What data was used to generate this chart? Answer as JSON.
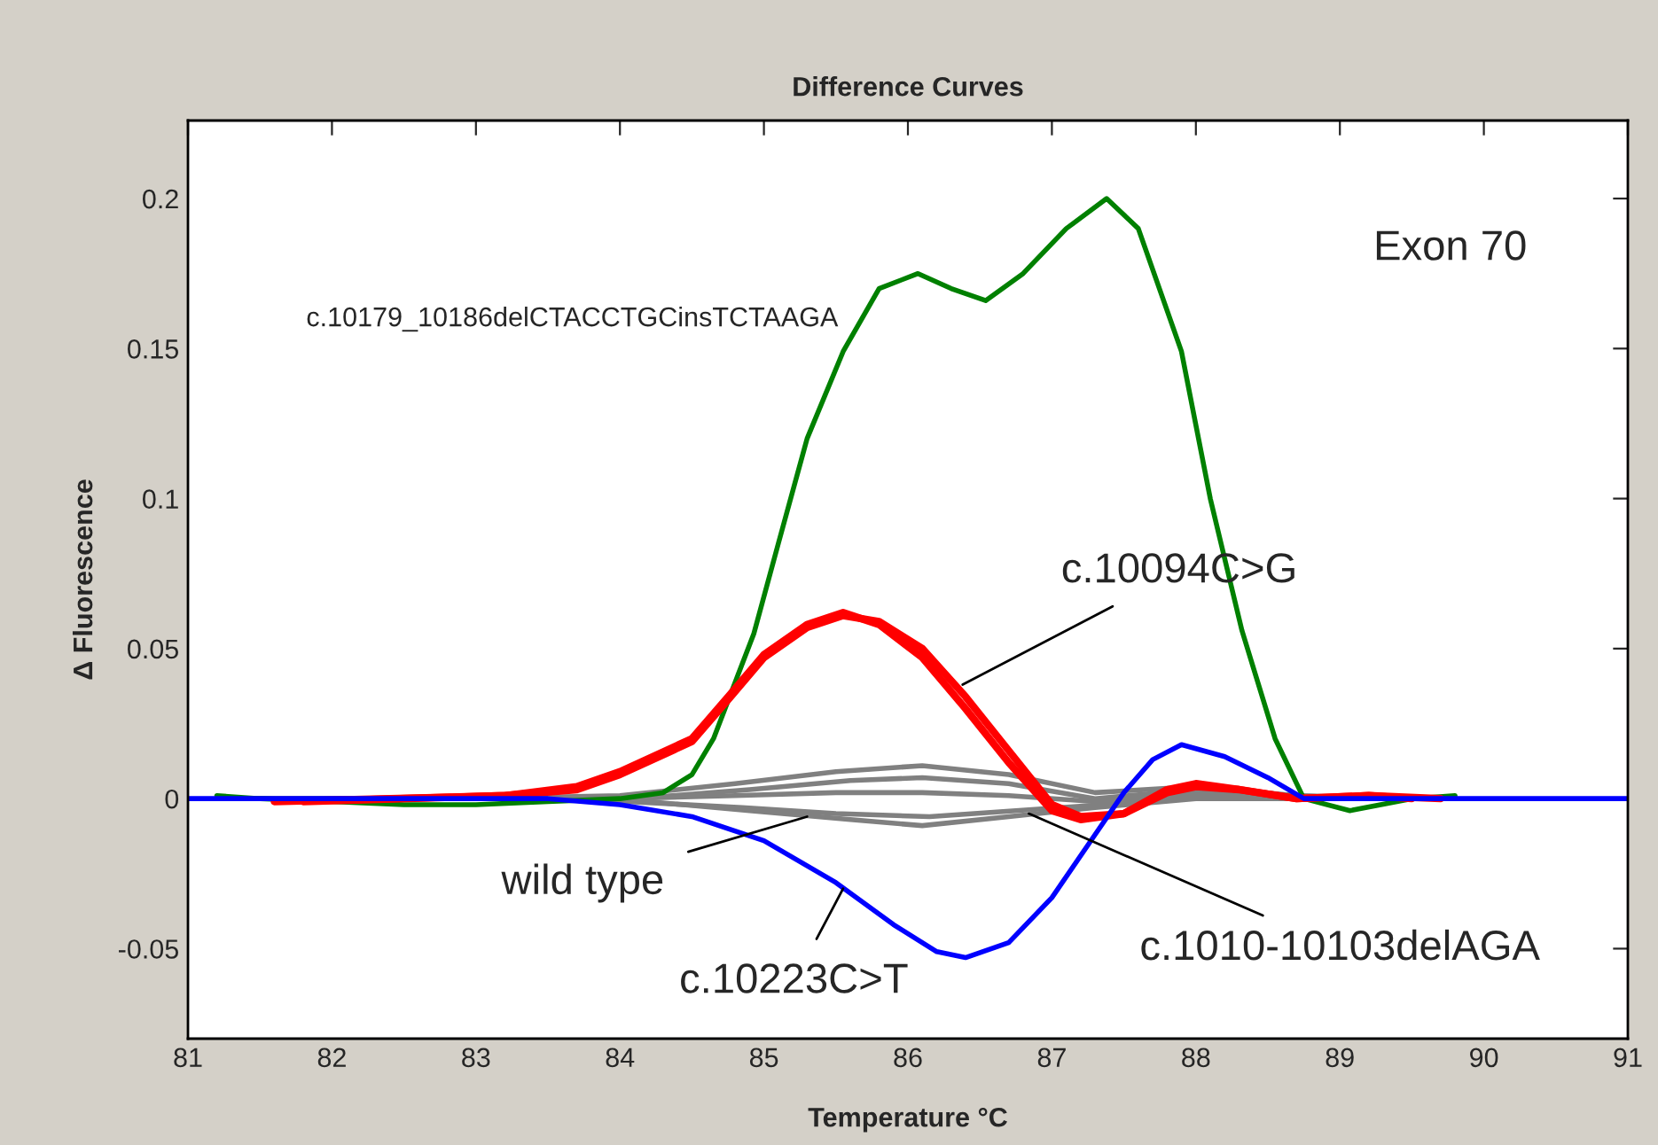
{
  "chart_data": {
    "type": "line",
    "title": "Difference Curves",
    "xlabel": "Temperature °C",
    "ylabel": "Δ Fluorescence",
    "xlim": [
      81,
      91
    ],
    "ylim": [
      -0.08,
      0.226
    ],
    "xticks": [
      81,
      82,
      83,
      84,
      85,
      86,
      87,
      88,
      89,
      90,
      91
    ],
    "yticks": [
      {
        "value": -0.05,
        "label": "-0.05"
      },
      0,
      0.05,
      0.1,
      0.15,
      0.2
    ],
    "grid": false,
    "legend": false,
    "marker": "none",
    "line_style": "solid",
    "series": [
      {
        "color": "#808080",
        "x": [
          81.5,
          83.0,
          84.0,
          84.8,
          85.5,
          86.1,
          86.7,
          87.3,
          88.0,
          88.7,
          89.5
        ],
        "values": [
          0,
          0,
          0.001,
          0.005,
          0.009,
          0.011,
          0.008,
          0.002,
          0.004,
          0.001,
          0
        ]
      },
      {
        "color": "#808080",
        "x": [
          81.8,
          83.1,
          84.1,
          84.9,
          85.6,
          86.1,
          86.7,
          87.3,
          88.0,
          88.7,
          89.3
        ],
        "values": [
          0,
          0,
          0.0,
          0.003,
          0.006,
          0.007,
          0.005,
          0.0,
          0.003,
          0.001,
          0
        ]
      },
      {
        "color": "#808080",
        "x": [
          81.3,
          83.0,
          84.0,
          84.8,
          85.5,
          86.1,
          86.7,
          87.3,
          88.0,
          88.7,
          89.7
        ],
        "values": [
          0,
          0,
          0.0,
          0.001,
          0.002,
          0.002,
          0.001,
          -0.001,
          0.002,
          0.0,
          0
        ]
      },
      {
        "color": "#808080",
        "x": [
          82.0,
          83.2,
          84.05,
          84.85,
          85.5,
          86.15,
          86.75,
          87.35,
          88.05,
          88.65,
          89.2
        ],
        "values": [
          0,
          0,
          -0.001,
          -0.003,
          -0.005,
          -0.006,
          -0.004,
          -0.002,
          0.001,
          0.0,
          0
        ]
      },
      {
        "color": "#808080",
        "x": [
          82.2,
          83.3,
          84.2,
          84.9,
          85.6,
          86.1,
          86.7,
          87.3,
          88.0,
          88.6,
          89.1
        ],
        "values": [
          0,
          0,
          -0.001,
          -0.004,
          -0.007,
          -0.009,
          -0.006,
          -0.003,
          0.0,
          0.0,
          0
        ]
      },
      {
        "color": "#008000",
        "x": [
          81.2,
          81.5,
          82.0,
          82.5,
          83.0,
          83.5,
          84.0,
          84.3,
          84.5,
          84.65,
          84.77,
          84.93,
          85.1,
          85.3,
          85.55,
          85.8,
          86.07,
          86.3,
          86.54,
          86.8,
          87.1,
          87.38,
          87.6,
          87.9,
          88.1,
          88.32,
          88.55,
          88.75,
          89.07,
          89.5,
          89.8
        ],
        "values": [
          0.001,
          0,
          -0.001,
          -0.002,
          -0.002,
          -0.001,
          0.0,
          0.002,
          0.008,
          0.02,
          0.035,
          0.055,
          0.085,
          0.12,
          0.149,
          0.17,
          0.175,
          0.17,
          0.166,
          0.175,
          0.19,
          0.2,
          0.19,
          0.149,
          0.1,
          0.056,
          0.02,
          0,
          -0.004,
          0,
          0.001
        ]
      },
      {
        "color": "#ff0000",
        "x": [
          81.6,
          83.2,
          83.7,
          84.0,
          84.5,
          84.77,
          85.0,
          85.3,
          85.55,
          85.8,
          86.1,
          86.4,
          86.7,
          87.0,
          87.2,
          87.5,
          87.8,
          88.0,
          88.3,
          88.7,
          89.2,
          89.7
        ],
        "values": [
          -0.001,
          0.001,
          0.004,
          0.009,
          0.02,
          0.035,
          0.048,
          0.058,
          0.062,
          0.058,
          0.047,
          0.03,
          0.012,
          -0.004,
          -0.007,
          -0.005,
          0.003,
          0.005,
          0.003,
          0.0,
          0.001,
          0
        ]
      },
      {
        "color": "#ff0000",
        "x": [
          81.8,
          83.2,
          83.7,
          84.0,
          84.5,
          84.77,
          85.0,
          85.3,
          85.55,
          85.8,
          86.1,
          86.4,
          86.7,
          87.0,
          87.2,
          87.5,
          87.8,
          88.0,
          88.3,
          88.7,
          89.2,
          89.5
        ],
        "values": [
          -0.001,
          0.001,
          0.003,
          0.008,
          0.019,
          0.034,
          0.047,
          0.057,
          0.061,
          0.059,
          0.05,
          0.034,
          0.016,
          -0.002,
          -0.006,
          -0.005,
          0.002,
          0.004,
          0.003,
          0.0,
          0.001,
          0
        ]
      },
      {
        "color": "#0000ff",
        "x": [
          81,
          83.5,
          84.0,
          84.5,
          85.0,
          85.5,
          85.9,
          86.2,
          86.4,
          86.7,
          87.0,
          87.3,
          87.5,
          87.7,
          87.9,
          88.2,
          88.5,
          88.75,
          91
        ],
        "values": [
          0,
          0,
          -0.002,
          -0.006,
          -0.014,
          -0.028,
          -0.042,
          -0.051,
          -0.053,
          -0.048,
          -0.033,
          -0.012,
          0.002,
          0.013,
          0.018,
          0.014,
          0.007,
          0,
          0
        ]
      }
    ],
    "annotations": [
      {
        "text": "c.10179_10186delCTACCTGCinsTCTAAGA",
        "x": 85.55,
        "y": 0.149
      },
      "Exon 70",
      {
        "text": "c.10094C>G",
        "x": 86.38,
        "y": 0.038
      },
      {
        "text": "wild type",
        "x": 85.3,
        "y": -0.006
      },
      {
        "text": "c.10223C>T",
        "x": 85.55,
        "y": -0.03
      },
      {
        "text": "c.1010-10103delAGA",
        "x": 86.84,
        "y": -0.005
      }
    ]
  }
}
